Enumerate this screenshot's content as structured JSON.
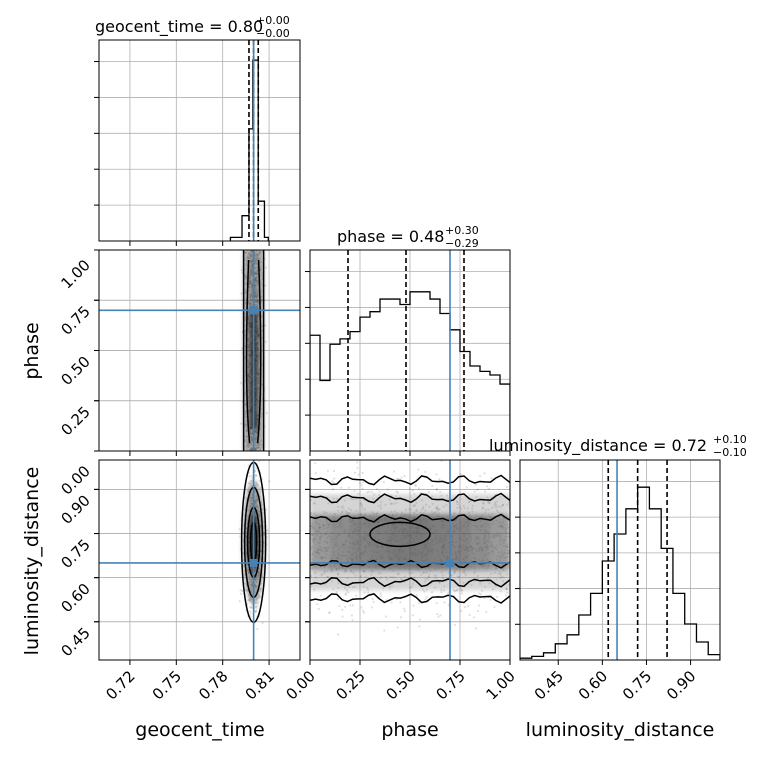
{
  "chart_data": {
    "type": "corner",
    "parameters": [
      "geocent_time",
      "phase",
      "luminosity_distance"
    ],
    "truth": {
      "geocent_time": 0.8,
      "phase": 0.7,
      "luminosity_distance": 0.65
    },
    "truth_color": "#4682b4",
    "grid": true,
    "diagonal": [
      {
        "parameter": "geocent_time",
        "title_main": "geocent_time = 0.80",
        "title_plus": "+0.00",
        "title_minus": "−0.00",
        "xlim": [
          0.7,
          0.83
        ],
        "quantiles": [
          0.797,
          0.8,
          0.803
        ],
        "bins": [
          0.785,
          0.7925,
          0.797,
          0.7995,
          0.803,
          0.807,
          0.8095
        ],
        "counts": [
          0.02,
          0.14,
          0.62,
          1.0,
          0.22,
          0.02
        ]
      },
      {
        "parameter": "phase",
        "title_main": "phase = 0.48",
        "title_plus": "+0.30",
        "title_minus": "−0.29",
        "xlim": [
          0.0,
          1.0
        ],
        "quantiles": [
          0.19,
          0.48,
          0.77
        ],
        "bins": [
          0.0,
          0.05,
          0.1,
          0.15,
          0.2,
          0.25,
          0.3,
          0.35,
          0.4,
          0.45,
          0.5,
          0.55,
          0.6,
          0.65,
          0.7,
          0.75,
          0.8,
          0.85,
          0.9,
          0.95,
          1.0
        ],
        "counts": [
          0.64,
          0.39,
          0.59,
          0.62,
          0.66,
          0.74,
          0.77,
          0.84,
          0.84,
          0.81,
          0.88,
          0.88,
          0.84,
          0.76,
          0.67,
          0.55,
          0.47,
          0.44,
          0.42,
          0.37
        ]
      },
      {
        "parameter": "luminosity_distance",
        "title_main": "luminosity_distance = 0.72",
        "title_plus": "+0.10",
        "title_minus": "−0.10",
        "xlim": [
          0.32,
          1.0
        ],
        "quantiles": [
          0.62,
          0.72,
          0.82
        ],
        "bins": [
          0.32,
          0.36,
          0.4,
          0.44,
          0.48,
          0.52,
          0.56,
          0.6,
          0.64,
          0.68,
          0.72,
          0.76,
          0.8,
          0.84,
          0.88,
          0.92,
          0.96,
          1.0
        ],
        "counts": [
          0.01,
          0.02,
          0.04,
          0.09,
          0.14,
          0.25,
          0.37,
          0.55,
          0.7,
          0.84,
          0.96,
          0.84,
          0.62,
          0.37,
          0.2,
          0.1,
          0.03
        ]
      }
    ],
    "panels_2d": [
      {
        "x": "geocent_time",
        "y": "phase"
      },
      {
        "x": "geocent_time",
        "y": "luminosity_distance"
      },
      {
        "x": "phase",
        "y": "luminosity_distance"
      }
    ],
    "axis_ranges": {
      "geocent_time": [
        0.7,
        0.83
      ],
      "phase": [
        0.0,
        1.0
      ],
      "luminosity_distance": [
        0.32,
        1.0
      ]
    },
    "ticks": {
      "geocent_time": [
        "0.72",
        "0.75",
        "0.78",
        "0.81"
      ],
      "phase": [
        "0.00",
        "0.25",
        "0.50",
        "0.75",
        "1.00"
      ],
      "luminosity_distance": [
        "0.45",
        "0.60",
        "0.75",
        "0.90"
      ]
    },
    "left_ticks": {
      "phase": [
        "0.25",
        "0.50",
        "0.75",
        "1.00"
      ],
      "luminosity_distance": [
        "0.00",
        "0.45",
        "0.60",
        "0.75",
        "0.90"
      ]
    },
    "xlabels": [
      "geocent_time",
      "phase",
      "luminosity_distance"
    ],
    "ylabels": [
      "phase",
      "luminosity_distance"
    ]
  }
}
